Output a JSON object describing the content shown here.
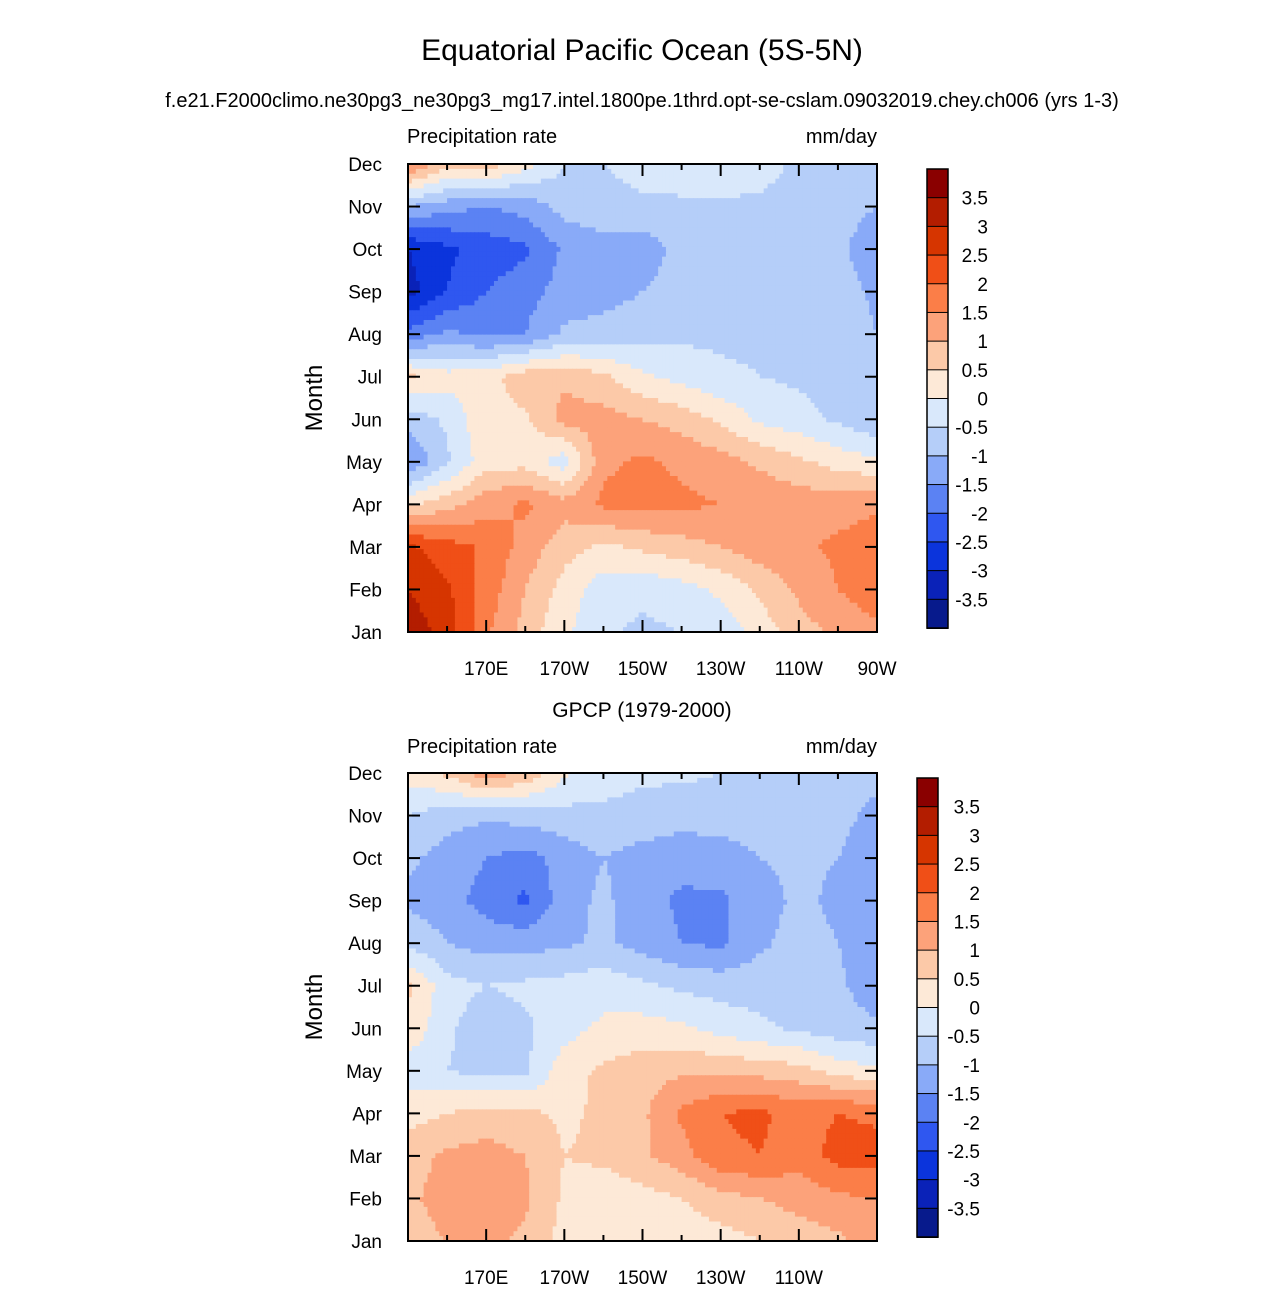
{
  "figure": {
    "title": "Equatorial Pacific Ocean (5S-5N)",
    "subtitle": "f.e21.F2000climo.ne30pg3_ne30pg3_mg17.intel.1800pe.1thrd.opt-se-cslam.09032019.chey.ch006 (yrs 1-3)"
  },
  "colorbar": {
    "levels": [
      "3.5",
      "3",
      "2.5",
      "2",
      "1.5",
      "1",
      "0.5",
      "0",
      "-0.5",
      "-1",
      "-1.5",
      "-2",
      "-2.5",
      "-3",
      "-3.5"
    ],
    "colors": [
      "#8a0000",
      "#b31d00",
      "#d63500",
      "#f04f17",
      "#fb7e48",
      "#fca27a",
      "#fcc9a8",
      "#fde9d7",
      "#d9e8fb",
      "#b5cef9",
      "#89aaf8",
      "#5b82f3",
      "#2f57f0",
      "#0b34dc",
      "#0a22b8",
      "#071a8c"
    ]
  },
  "chart_data": [
    {
      "type": "heatmap",
      "name": "model",
      "title": "",
      "left_label": "Precipitation rate",
      "right_label": "mm/day",
      "ylabel": "Month",
      "xlabel": "",
      "x_ticks": [
        "170E",
        "170W",
        "150W",
        "130W",
        "110W",
        "90W"
      ],
      "y_ticks": [
        "Jan",
        "Feb",
        "Mar",
        "Apr",
        "May",
        "Jun",
        "Jul",
        "Aug",
        "Sep",
        "Oct",
        "Nov",
        "Dec"
      ],
      "x_range_deg": [
        150,
        270
      ],
      "lon": [
        150,
        160,
        170,
        180,
        190,
        200,
        210,
        220,
        230,
        240,
        250,
        260,
        270
      ],
      "values": [
        [
          3.3,
          2.8,
          1.6,
          0.8,
          0.1,
          -0.4,
          -0.6,
          -0.5,
          -0.3,
          0.2,
          0.8,
          1.1,
          1.4
        ],
        [
          3.0,
          2.6,
          1.8,
          1.0,
          0.3,
          -0.3,
          -0.4,
          -0.2,
          0.1,
          0.6,
          1.1,
          1.5,
          1.8
        ],
        [
          2.6,
          2.2,
          1.9,
          1.3,
          0.7,
          0.4,
          0.6,
          0.8,
          1.0,
          1.3,
          1.4,
          1.6,
          1.8
        ],
        [
          0.4,
          0.8,
          1.3,
          1.6,
          1.2,
          1.6,
          1.7,
          1.6,
          1.5,
          1.4,
          1.3,
          1.3,
          1.4
        ],
        [
          -1.5,
          -0.6,
          0.3,
          0.3,
          -0.3,
          1.4,
          1.6,
          1.4,
          1.2,
          0.9,
          0.6,
          0.3,
          0.1
        ],
        [
          -0.8,
          -0.4,
          0.4,
          0.4,
          1.2,
          1.2,
          1.0,
          0.8,
          0.4,
          -0.1,
          -0.3,
          -0.6,
          -0.9
        ],
        [
          0.6,
          0.2,
          0.3,
          0.8,
          0.9,
          0.6,
          0.1,
          -0.2,
          -0.4,
          -0.5,
          -0.6,
          -0.7,
          -0.8
        ],
        [
          -1.8,
          -1.4,
          -1.6,
          -1.5,
          -0.9,
          -0.8,
          -0.7,
          -0.6,
          -0.6,
          -0.6,
          -0.6,
          -0.7,
          -1.0
        ],
        [
          -3.2,
          -2.5,
          -2.0,
          -1.7,
          -1.3,
          -1.2,
          -1.0,
          -0.8,
          -0.7,
          -0.6,
          -0.7,
          -0.8,
          -1.1
        ],
        [
          -3.0,
          -2.6,
          -2.3,
          -2.1,
          -1.4,
          -1.2,
          -1.3,
          -0.8,
          -0.7,
          -0.7,
          -0.8,
          -0.9,
          -1.3
        ],
        [
          -1.0,
          -1.3,
          -1.5,
          -1.3,
          -0.8,
          -0.7,
          -0.6,
          -0.6,
          -0.6,
          -0.6,
          -0.7,
          -0.8,
          -1.0
        ],
        [
          1.6,
          0.7,
          0.8,
          0.2,
          -0.5,
          -0.5,
          -0.3,
          -0.2,
          -0.1,
          -0.3,
          -0.6,
          -0.7,
          -0.8
        ]
      ]
    },
    {
      "type": "heatmap",
      "name": "obs",
      "title": "GPCP (1979-2000)",
      "left_label": "Precipitation rate",
      "right_label": "mm/day",
      "ylabel": "Month",
      "xlabel": "",
      "x_ticks": [
        "170E",
        "170W",
        "150W",
        "130W",
        "110W"
      ],
      "y_ticks": [
        "Jan",
        "Feb",
        "Mar",
        "Apr",
        "May",
        "Jun",
        "Jul",
        "Aug",
        "Sep",
        "Oct",
        "Nov",
        "Dec"
      ],
      "x_range_deg": [
        150,
        270
      ],
      "lon": [
        150,
        160,
        170,
        180,
        190,
        200,
        210,
        220,
        230,
        240,
        250,
        260,
        270
      ],
      "values": [
        [
          0.8,
          1.0,
          1.1,
          0.9,
          0.3,
          0.2,
          0.1,
          0.2,
          0.3,
          0.5,
          0.7,
          0.9,
          1.2
        ],
        [
          0.9,
          1.2,
          1.3,
          1.1,
          0.4,
          0.2,
          0.3,
          0.5,
          0.8,
          1.0,
          1.2,
          1.4,
          1.5
        ],
        [
          0.8,
          1.1,
          1.2,
          1.0,
          0.5,
          0.6,
          0.9,
          1.3,
          1.9,
          2.0,
          1.7,
          2.2,
          2.2
        ],
        [
          0.3,
          0.5,
          0.7,
          0.6,
          0.4,
          0.6,
          0.9,
          1.6,
          2.0,
          2.1,
          1.8,
          2.0,
          1.9
        ],
        [
          -0.3,
          -0.5,
          -0.7,
          -0.6,
          0.3,
          0.6,
          0.8,
          0.9,
          0.9,
          0.8,
          0.7,
          0.3,
          0.1
        ],
        [
          0.4,
          -0.4,
          -0.8,
          -0.6,
          -0.2,
          0.1,
          0.2,
          0.1,
          -0.2,
          -0.4,
          -0.6,
          -0.8,
          -0.9
        ],
        [
          0.6,
          -0.3,
          -0.5,
          -0.4,
          -0.3,
          -0.2,
          -0.4,
          -0.6,
          -0.7,
          -0.7,
          -0.7,
          -0.9,
          -1.3
        ],
        [
          -0.6,
          -1.0,
          -1.2,
          -1.2,
          -1.1,
          -0.9,
          -1.2,
          -1.5,
          -1.6,
          -1.1,
          -0.8,
          -1.0,
          -1.3
        ],
        [
          -1.1,
          -1.3,
          -1.7,
          -2.1,
          -1.2,
          -0.9,
          -1.3,
          -1.6,
          -1.6,
          -1.2,
          -0.9,
          -1.1,
          -1.5
        ],
        [
          -0.9,
          -1.2,
          -1.5,
          -1.7,
          -1.3,
          -1.0,
          -1.2,
          -1.3,
          -1.2,
          -1.0,
          -0.9,
          -1.0,
          -1.2
        ],
        [
          -0.5,
          -0.8,
          -0.9,
          -0.8,
          -0.7,
          -0.6,
          -0.7,
          -0.8,
          -0.8,
          -0.8,
          -0.8,
          -0.9,
          -1.1
        ],
        [
          0.2,
          0.6,
          1.3,
          0.9,
          0.1,
          -0.3,
          -0.4,
          -0.4,
          -0.5,
          -0.6,
          -0.7,
          -0.8,
          -0.9
        ]
      ]
    }
  ]
}
